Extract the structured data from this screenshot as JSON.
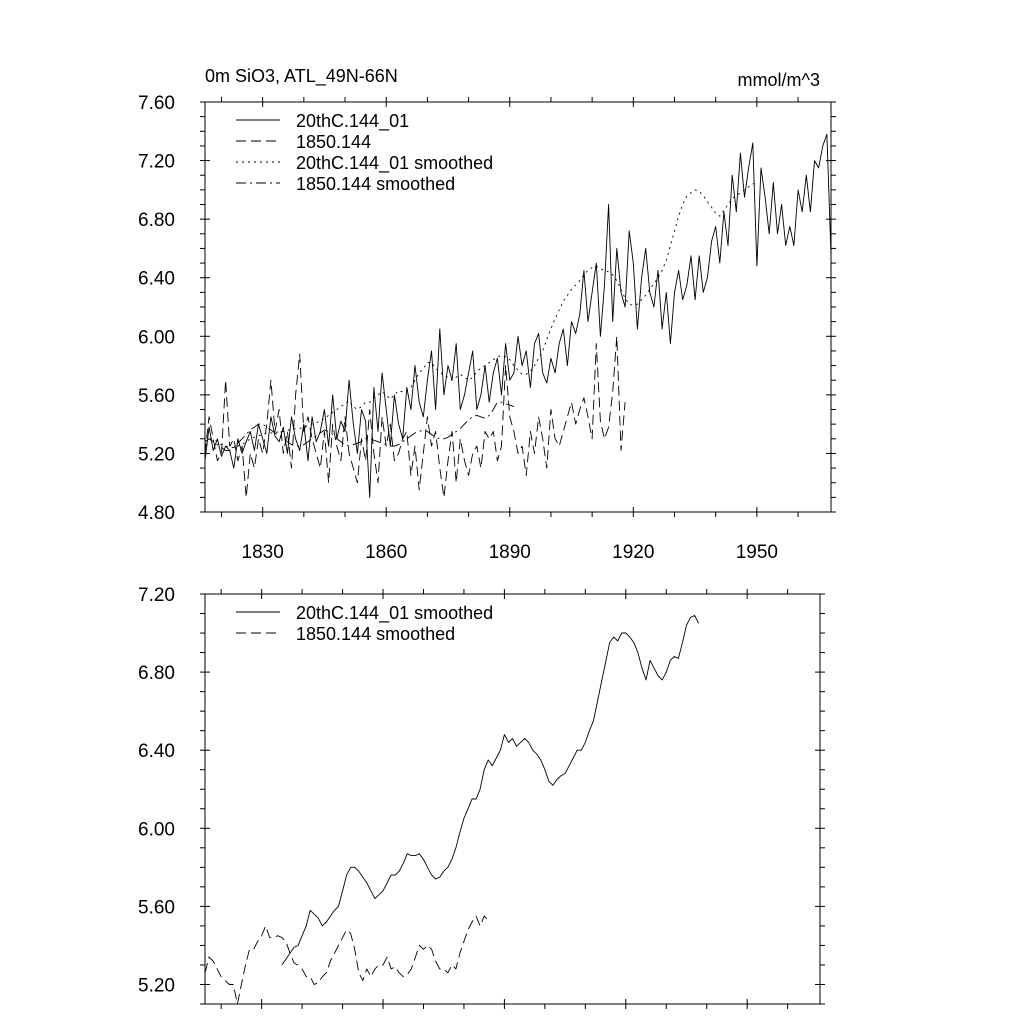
{
  "chart_data": [
    {
      "type": "line",
      "title_left": "0m SiO3, ATL_49N-66N",
      "title_right": "mmol/m^3",
      "xlim": [
        1816,
        1968
      ],
      "ylim": [
        4.8,
        7.6
      ],
      "xticks": [
        1830,
        1860,
        1890,
        1920,
        1950
      ],
      "yticks": [
        4.8,
        5.2,
        5.6,
        6.0,
        6.4,
        6.8,
        7.2,
        7.6
      ],
      "ytick_labels": [
        "4.80",
        "5.20",
        "5.60",
        "6.00",
        "6.40",
        "6.80",
        "7.20",
        "7.60"
      ],
      "xtick_labels": [
        "1830",
        "1860",
        "1890",
        "1920",
        "1950"
      ],
      "legend": [
        "20thC.144_01",
        "1850.144",
        "20thC.144_01 smoothed",
        "1850.144 smoothed"
      ],
      "series": [
        {
          "name": "20thC.144_01",
          "style": "solid",
          "x_start": 1816,
          "values": [
            5.15,
            5.38,
            5.22,
            5.3,
            5.18,
            5.25,
            5.22,
            5.1,
            5.3,
            5.2,
            5.28,
            5.35,
            5.22,
            5.4,
            5.3,
            5.2,
            5.45,
            5.32,
            5.28,
            5.38,
            5.2,
            5.45,
            5.3,
            5.22,
            5.4,
            5.15,
            5.45,
            5.28,
            5.35,
            5.5,
            5.25,
            5.6,
            5.3,
            5.42,
            5.35,
            5.7,
            5.4,
            5.2,
            5.5,
            5.42,
            4.9,
            5.65,
            5.35,
            5.75,
            5.5,
            5.25,
            5.6,
            5.4,
            5.3,
            5.65,
            5.5,
            5.8,
            5.55,
            5.45,
            5.7,
            5.9,
            5.5,
            6.05,
            5.6,
            5.8,
            5.7,
            5.95,
            5.5,
            5.6,
            5.75,
            5.9,
            5.5,
            5.6,
            5.8,
            5.55,
            5.75,
            5.85,
            5.6,
            5.95,
            5.7,
            5.75,
            6.0,
            5.8,
            5.9,
            5.65,
            5.95,
            6.02,
            5.75,
            5.68,
            5.85,
            5.75,
            5.95,
            6.05,
            5.8,
            6.1,
            6.02,
            6.15,
            6.45,
            6.1,
            6.3,
            6.5,
            6.0,
            6.35,
            6.9,
            6.1,
            6.6,
            6.3,
            6.2,
            6.72,
            6.5,
            6.05,
            6.4,
            6.6,
            6.3,
            6.2,
            6.45,
            6.05,
            6.3,
            5.95,
            6.3,
            6.45,
            6.25,
            6.35,
            6.55,
            6.25,
            6.55,
            6.3,
            6.4,
            6.65,
            6.75,
            6.5,
            6.85,
            6.62,
            7.1,
            6.85,
            7.25,
            6.95,
            7.15,
            7.32,
            6.48,
            7.15,
            6.95,
            6.7,
            7.05,
            6.7,
            6.9,
            6.62,
            6.75,
            6.62,
            7.0,
            6.85,
            7.1,
            6.85,
            7.2,
            7.15,
            7.3,
            7.38,
            6.55
          ]
        },
        {
          "name": "1850.144",
          "style": "dash",
          "x_start": 1816,
          "values": [
            5.2,
            5.45,
            5.3,
            5.15,
            5.2,
            5.7,
            5.25,
            5.3,
            5.15,
            5.25,
            4.9,
            5.2,
            5.1,
            5.3,
            5.2,
            5.4,
            5.7,
            5.35,
            5.5,
            5.2,
            5.35,
            5.1,
            5.6,
            5.88,
            5.35,
            5.45,
            5.3,
            5.2,
            5.1,
            5.35,
            5.0,
            5.4,
            5.25,
            5.15,
            5.45,
            5.2,
            5.1,
            5.0,
            5.3,
            5.15,
            5.5,
            5.2,
            5.0,
            5.45,
            5.25,
            5.4,
            5.15,
            5.2,
            5.3,
            5.35,
            5.05,
            5.25,
            4.95,
            5.2,
            5.45,
            5.25,
            5.35,
            5.1,
            4.9,
            5.15,
            5.35,
            5.0,
            5.3,
            5.15,
            5.05,
            5.2,
            5.25,
            5.1,
            5.35,
            5.3,
            5.35,
            5.15,
            5.25,
            5.8,
            5.45,
            5.35,
            5.2,
            5.25,
            5.05,
            5.35,
            5.2,
            5.45,
            5.3,
            5.1,
            5.5,
            5.3,
            5.25,
            5.35,
            5.45,
            5.55,
            5.4,
            5.5,
            5.58,
            5.45,
            5.3,
            5.95,
            5.42,
            5.3,
            5.38,
            5.62,
            6.0,
            5.22,
            5.55
          ]
        },
        {
          "name": "20thC.144_01 smoothed",
          "style": "dot",
          "x_start": 1816,
          "values": [
            5.28,
            5.3,
            5.3,
            5.28,
            5.26,
            5.25,
            5.24,
            5.24,
            5.25,
            5.26,
            5.28,
            5.3,
            5.31,
            5.32,
            5.33,
            5.34,
            5.34,
            5.34,
            5.35,
            5.35,
            5.36,
            5.36,
            5.37,
            5.37,
            5.38,
            5.39,
            5.4,
            5.41,
            5.42,
            5.44,
            5.46,
            5.48,
            5.5,
            5.52,
            5.54,
            5.56,
            5.52,
            5.5,
            5.52,
            5.55,
            5.55,
            5.58,
            5.6,
            5.62,
            5.6,
            5.57,
            5.6,
            5.63,
            5.62,
            5.63,
            5.65,
            5.7,
            5.75,
            5.78,
            5.82,
            5.82,
            5.78,
            5.76,
            5.73,
            5.72,
            5.7,
            5.72,
            5.74,
            5.72,
            5.7,
            5.72,
            5.76,
            5.78,
            5.8,
            5.82,
            5.84,
            5.86,
            5.87,
            5.86,
            5.84,
            5.8,
            5.77,
            5.74,
            5.74,
            5.76,
            5.8,
            5.85,
            5.9,
            5.98,
            6.05,
            6.12,
            6.18,
            6.24,
            6.28,
            6.32,
            6.35,
            6.38,
            6.42,
            6.45,
            6.47,
            6.48,
            6.46,
            6.45,
            6.44,
            6.42,
            6.38,
            6.32,
            6.26,
            6.22,
            6.21,
            6.22,
            6.25,
            6.28,
            6.32,
            6.36,
            6.4,
            6.45,
            6.52,
            6.62,
            6.72,
            6.82,
            6.9,
            6.96,
            6.98,
            7.0,
            6.99,
            6.96,
            6.92,
            6.88,
            6.84,
            6.82,
            6.86,
            6.9,
            6.94,
            6.96,
            6.98,
            7.0,
            7.02,
            7.04,
            7.05
          ]
        },
        {
          "name": "1850.144 smoothed",
          "style": "dashdot",
          "x_start": 1816,
          "values": [
            5.28,
            5.3,
            5.28,
            5.26,
            5.24,
            5.22,
            5.22,
            5.24,
            5.27,
            5.3,
            5.33,
            5.36,
            5.38,
            5.4,
            5.4,
            5.38,
            5.36,
            5.34,
            5.32,
            5.3,
            5.28,
            5.26,
            5.25,
            5.25,
            5.26,
            5.28,
            5.3,
            5.32,
            5.34,
            5.36,
            5.35,
            5.33,
            5.3,
            5.28,
            5.26,
            5.25,
            5.26,
            5.27,
            5.28,
            5.3,
            5.3,
            5.29,
            5.28,
            5.27,
            5.26,
            5.25,
            5.25,
            5.26,
            5.28,
            5.3,
            5.32,
            5.34,
            5.35,
            5.36,
            5.35,
            5.33,
            5.31,
            5.3,
            5.3,
            5.31,
            5.33,
            5.35,
            5.37,
            5.4,
            5.43,
            5.45,
            5.46,
            5.45,
            5.44,
            5.46,
            5.5,
            5.55,
            5.55,
            5.54,
            5.53,
            5.52
          ]
        }
      ]
    },
    {
      "type": "line",
      "xlim": [
        1816,
        1968
      ],
      "ylim": [
        5.1,
        7.2
      ],
      "xticks": [
        1830,
        1860,
        1890,
        1920,
        1950
      ],
      "yticks": [
        5.2,
        5.6,
        6.0,
        6.4,
        6.8,
        7.2
      ],
      "ytick_labels": [
        "5.20",
        "5.60",
        "6.00",
        "6.40",
        "6.80",
        "7.20"
      ],
      "legend": [
        "20thC.144_01 smoothed",
        "1850.144 smoothed"
      ],
      "series": [
        {
          "name": "20thC.144_01 smoothed",
          "style": "solid",
          "x_start": 1835,
          "values": [
            5.3,
            5.33,
            5.36,
            5.39,
            5.4,
            5.45,
            5.5,
            5.58,
            5.56,
            5.54,
            5.5,
            5.52,
            5.55,
            5.58,
            5.6,
            5.68,
            5.76,
            5.8,
            5.8,
            5.78,
            5.75,
            5.72,
            5.68,
            5.64,
            5.66,
            5.68,
            5.72,
            5.76,
            5.76,
            5.78,
            5.82,
            5.87,
            5.86,
            5.86,
            5.87,
            5.84,
            5.8,
            5.76,
            5.74,
            5.75,
            5.78,
            5.8,
            5.84,
            5.9,
            5.98,
            6.05,
            6.1,
            6.15,
            6.15,
            6.2,
            6.3,
            6.35,
            6.32,
            6.36,
            6.4,
            6.48,
            6.44,
            6.46,
            6.42,
            6.44,
            6.46,
            6.44,
            6.4,
            6.38,
            6.35,
            6.3,
            6.24,
            6.22,
            6.25,
            6.27,
            6.28,
            6.32,
            6.36,
            6.4,
            6.4,
            6.44,
            6.5,
            6.55,
            6.65,
            6.75,
            6.85,
            6.95,
            6.98,
            6.96,
            7.0,
            7.0,
            6.98,
            6.95,
            6.9,
            6.82,
            6.76,
            6.86,
            6.82,
            6.78,
            6.76,
            6.8,
            6.86,
            6.88,
            6.87,
            6.95,
            7.04,
            7.08,
            7.09,
            7.05
          ]
        },
        {
          "name": "1850.144 smoothed",
          "style": "dash",
          "x_start": 1816,
          "values": [
            5.26,
            5.34,
            5.32,
            5.28,
            5.24,
            5.22,
            5.2,
            5.2,
            5.1,
            5.2,
            5.3,
            5.38,
            5.38,
            5.42,
            5.45,
            5.5,
            5.44,
            5.44,
            5.45,
            5.44,
            5.42,
            5.36,
            5.31,
            5.3,
            5.28,
            5.24,
            5.24,
            5.2,
            5.21,
            5.24,
            5.26,
            5.32,
            5.36,
            5.4,
            5.44,
            5.48,
            5.46,
            5.38,
            5.26,
            5.22,
            5.28,
            5.24,
            5.28,
            5.3,
            5.3,
            5.34,
            5.28,
            5.29,
            5.26,
            5.24,
            5.25,
            5.28,
            5.34,
            5.4,
            5.38,
            5.4,
            5.38,
            5.32,
            5.28,
            5.28,
            5.26,
            5.3,
            5.28,
            5.36,
            5.42,
            5.48,
            5.52,
            5.55,
            5.5,
            5.55,
            5.53
          ]
        }
      ]
    }
  ]
}
